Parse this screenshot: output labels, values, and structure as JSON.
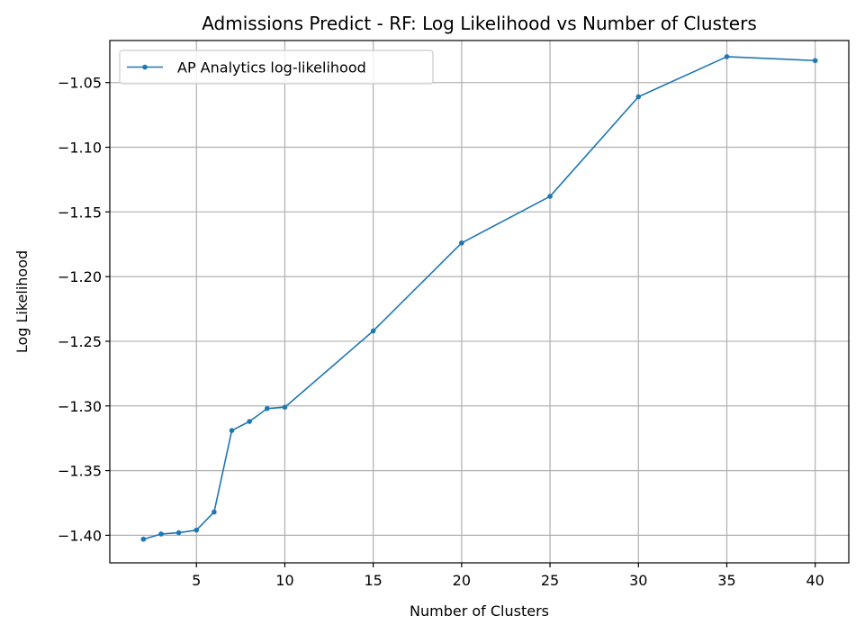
{
  "chart_data": {
    "type": "line",
    "title": "Admissions Predict - RF: Log Likelihood vs Number of Clusters",
    "xlabel": "Number of Clusters",
    "ylabel": "Log Likelihood",
    "xlim": [
      0.1,
      41.9
    ],
    "ylim": [
      -1.4213,
      -1.0175
    ],
    "xticks": [
      5,
      10,
      15,
      20,
      25,
      30,
      35,
      40
    ],
    "xtick_labels": [
      "5",
      "10",
      "15",
      "20",
      "25",
      "30",
      "35",
      "40"
    ],
    "yticks": [
      -1.4,
      -1.35,
      -1.3,
      -1.25,
      -1.2,
      -1.15,
      -1.1,
      -1.05
    ],
    "ytick_labels": [
      "−1.40",
      "−1.35",
      "−1.30",
      "−1.25",
      "−1.20",
      "−1.15",
      "−1.10",
      "−1.05"
    ],
    "grid": true,
    "legend_position": "top-left",
    "series": [
      {
        "name": "AP Analytics log-likelihood",
        "color": "#1f77b4",
        "marker": "circle",
        "x": [
          2,
          3,
          4,
          5,
          6,
          7,
          8,
          9,
          10,
          15,
          20,
          25,
          30,
          35,
          40
        ],
        "y": [
          -1.403,
          -1.399,
          -1.398,
          -1.396,
          -1.382,
          -1.319,
          -1.312,
          -1.302,
          -1.301,
          -1.242,
          -1.174,
          -1.138,
          -1.061,
          -1.03,
          -1.033
        ]
      }
    ]
  }
}
